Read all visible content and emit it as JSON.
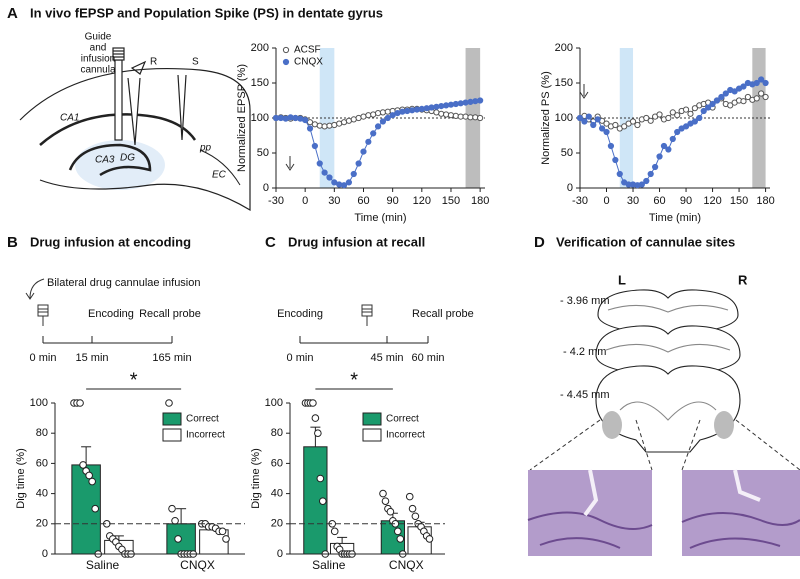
{
  "panels": {
    "A": {
      "label": "A",
      "title": "In vivo fEPSP and Population Spike (PS) in dentate gyrus",
      "cannula_label": [
        "Guide",
        "and",
        "infusion",
        "cannula"
      ],
      "labels": [
        "R",
        "S",
        "CA1",
        "CA3",
        "DG",
        "pp",
        "EC"
      ]
    },
    "B": {
      "label": "B",
      "title": "Drug infusion at encoding",
      "note": "Bilateral drug cannulae infusion",
      "events": [
        "Encoding",
        "Recall probe"
      ],
      "times": [
        "0 min",
        "15 min",
        "165 min"
      ]
    },
    "C": {
      "label": "C",
      "title": "Drug infusion at recall",
      "events": [
        "Encoding",
        "Recall probe"
      ],
      "times": [
        "0 min",
        "45 min",
        "60 min"
      ]
    },
    "D": {
      "label": "D",
      "title": "Verification of cannulae sites",
      "sides": [
        "L",
        "R"
      ],
      "levels": [
        "- 3.96 mm",
        "- 4.2 mm",
        "- 4.45 mm"
      ]
    }
  },
  "chart_data": [
    {
      "type": "line",
      "xlabel": "Time (min)",
      "ylabel": "Normalized EPSP (%)",
      "x": [
        -30,
        -25,
        -20,
        -15,
        -10,
        -5,
        0,
        5,
        10,
        15,
        20,
        25,
        30,
        35,
        40,
        45,
        50,
        55,
        60,
        65,
        70,
        75,
        80,
        85,
        90,
        95,
        100,
        105,
        110,
        115,
        120,
        125,
        130,
        135,
        140,
        145,
        150,
        155,
        160,
        165,
        170,
        175,
        180
      ],
      "xlim": [
        -30,
        185
      ],
      "xticks": [
        -30,
        0,
        30,
        60,
        90,
        120,
        150,
        180
      ],
      "ylim": [
        0,
        200
      ],
      "yticks": [
        0,
        50,
        100,
        150,
        200
      ],
      "refline": 100,
      "bands": [
        {
          "x": [
            15,
            30
          ],
          "color": "#cfe6f7"
        },
        {
          "x": [
            165,
            180
          ],
          "color": "#bdbdbd"
        }
      ],
      "legend": "upper left",
      "series": [
        {
          "name": "ACSF",
          "color": "#555555",
          "marker": "open",
          "values": [
            100,
            101,
            100,
            99,
            100,
            100,
            98,
            94,
            91,
            89,
            88,
            89,
            90,
            92,
            94,
            96,
            98,
            100,
            102,
            104,
            105,
            107,
            108,
            109,
            110,
            111,
            112,
            112,
            113,
            113,
            112,
            111,
            110,
            108,
            106,
            105,
            104,
            103,
            102,
            102,
            101,
            101,
            100
          ]
        },
        {
          "name": "CNQX",
          "color": "#4a6fc7",
          "marker": "filled",
          "values": [
            100,
            100,
            99,
            101,
            100,
            99,
            97,
            85,
            60,
            35,
            22,
            15,
            8,
            5,
            4,
            8,
            20,
            35,
            52,
            66,
            78,
            88,
            95,
            100,
            104,
            107,
            109,
            110,
            111,
            112,
            113,
            114,
            115,
            116,
            117,
            118,
            119,
            120,
            121,
            122,
            123,
            124,
            125
          ]
        }
      ]
    },
    {
      "type": "line",
      "xlabel": "Time (min)",
      "ylabel": "Normalized PS (%)",
      "x": [
        -30,
        -25,
        -20,
        -15,
        -10,
        -5,
        0,
        5,
        10,
        15,
        20,
        25,
        30,
        35,
        40,
        45,
        50,
        55,
        60,
        65,
        70,
        75,
        80,
        85,
        90,
        95,
        100,
        105,
        110,
        115,
        120,
        125,
        130,
        135,
        140,
        145,
        150,
        155,
        160,
        165,
        170,
        175,
        180
      ],
      "xlim": [
        -30,
        185
      ],
      "xticks": [
        -30,
        0,
        30,
        60,
        90,
        120,
        150,
        180
      ],
      "ylim": [
        0,
        200
      ],
      "yticks": [
        0,
        50,
        100,
        150,
        200
      ],
      "refline": 100,
      "bands": [
        {
          "x": [
            15,
            30
          ],
          "color": "#cfe6f7"
        },
        {
          "x": [
            165,
            180
          ],
          "color": "#bdbdbd"
        }
      ],
      "series": [
        {
          "name": "ACSF",
          "color": "#555555",
          "marker": "open",
          "values": [
            100,
            103,
            98,
            95,
            102,
            96,
            92,
            88,
            90,
            85,
            88,
            92,
            95,
            90,
            98,
            100,
            96,
            102,
            105,
            98,
            100,
            108,
            104,
            110,
            112,
            106,
            114,
            118,
            120,
            122,
            115,
            125,
            128,
            120,
            118,
            122,
            125,
            124,
            130,
            126,
            128,
            135,
            130
          ]
        },
        {
          "name": "CNQX",
          "color": "#4a6fc7",
          "marker": "filled",
          "values": [
            100,
            95,
            102,
            90,
            98,
            85,
            80,
            60,
            40,
            20,
            8,
            5,
            5,
            4,
            5,
            10,
            20,
            30,
            45,
            60,
            55,
            70,
            80,
            85,
            88,
            92,
            95,
            100,
            110,
            115,
            120,
            125,
            130,
            135,
            140,
            138,
            142,
            145,
            150,
            148,
            150,
            155,
            150
          ]
        }
      ]
    },
    {
      "type": "bar",
      "ylabel": "Dig time (%)",
      "categories": [
        "Saline",
        "CNQX"
      ],
      "ylim": [
        0,
        100
      ],
      "yticks": [
        0,
        20,
        40,
        60,
        80,
        100
      ],
      "refline": 20,
      "annotation": "*",
      "legend": "upper right",
      "series": [
        {
          "name": "Correct",
          "color": "#1a9a6c",
          "values": [
            59,
            20
          ],
          "errors": [
            12,
            10
          ],
          "points": [
            [
              100,
              100,
              100,
              59,
              55,
              52,
              48,
              30,
              0
            ],
            [
              100,
              30,
              22,
              10,
              0,
              0,
              0,
              0,
              0
            ]
          ]
        },
        {
          "name": "Incorrect",
          "color": "#ffffff",
          "values": [
            9,
            16
          ],
          "errors": [
            3,
            2
          ],
          "points": [
            [
              20,
              12,
              10,
              8,
              5,
              3,
              0,
              0,
              0
            ],
            [
              20,
              20,
              18,
              18,
              17,
              15,
              15,
              10
            ]
          ]
        }
      ]
    },
    {
      "type": "bar",
      "ylabel": "Dig time (%)",
      "categories": [
        "Saline",
        "CNQX"
      ],
      "ylim": [
        0,
        100
      ],
      "yticks": [
        0,
        20,
        40,
        60,
        80,
        100
      ],
      "refline": 20,
      "annotation": "*",
      "legend": "upper right",
      "series": [
        {
          "name": "Correct",
          "color": "#1a9a6c",
          "values": [
            71,
            22
          ],
          "errors": [
            13,
            5
          ],
          "points": [
            [
              100,
              100,
              100,
              100,
              90,
              80,
              50,
              35,
              0
            ],
            [
              40,
              35,
              30,
              28,
              22,
              20,
              15,
              10,
              0
            ]
          ]
        },
        {
          "name": "Incorrect",
          "color": "#ffffff",
          "values": [
            7,
            18
          ],
          "errors": [
            4,
            3
          ],
          "points": [
            [
              20,
              15,
              5,
              3,
              0,
              0,
              0,
              0,
              0
            ],
            [
              38,
              30,
              25,
              20,
              18,
              15,
              12,
              10
            ]
          ]
        }
      ]
    }
  ]
}
